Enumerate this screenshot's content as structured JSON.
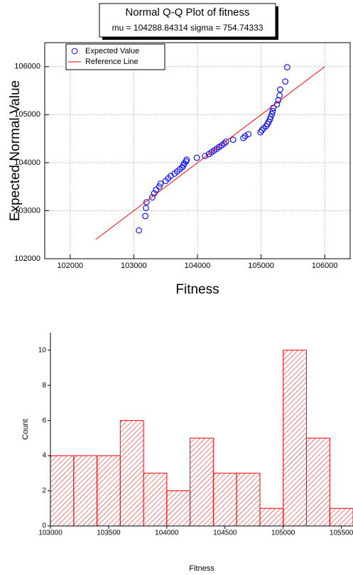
{
  "chart_data": [
    {
      "type": "scatter",
      "title": "Normal Q-Q Plot of fitness",
      "subtitle": "mu = 104288.84314  sigma = 754.74333",
      "xlabel": "Fitness",
      "ylabel": "Expected Normal Value",
      "xlim": [
        101600,
        106400
      ],
      "xticks": [
        102000,
        103000,
        104000,
        105000,
        106000
      ],
      "ylim": [
        102000,
        106500
      ],
      "yticks": [
        102000,
        103000,
        104000,
        105000,
        106000
      ],
      "grid": true,
      "legend": "upper left",
      "series": [
        {
          "name": "Expected Value",
          "type": "scatter",
          "color": "#0000ff",
          "x": [
            103080,
            103180,
            103190,
            103200,
            103290,
            103320,
            103350,
            103400,
            103420,
            103500,
            103540,
            103580,
            103640,
            103680,
            103720,
            103760,
            103780,
            103790,
            103820,
            103830,
            103990,
            104120,
            104180,
            104220,
            104260,
            104300,
            104340,
            104380,
            104420,
            104450,
            104560,
            104720,
            104750,
            104800,
            104990,
            105010,
            105040,
            105080,
            105100,
            105120,
            105140,
            105150,
            105170,
            105180,
            105190,
            105250,
            105270,
            105290,
            105300,
            105380,
            105410
          ],
          "values": [
            102590,
            102888,
            103055,
            103178,
            103277,
            103363,
            103436,
            103503,
            103563,
            103620,
            103673,
            103724,
            103771,
            103817,
            103861,
            103904,
            103945,
            103985,
            104026,
            104064,
            104103,
            104140,
            104178,
            104215,
            104252,
            104289,
            104326,
            104363,
            104401,
            104438,
            104478,
            104514,
            104553,
            104593,
            104632,
            104674,
            104717,
            104761,
            104807,
            104854,
            104905,
            104958,
            105015,
            105075,
            105142,
            105215,
            105301,
            105400,
            105523,
            105690,
            105988
          ]
        },
        {
          "name": "Reference Line",
          "type": "line",
          "color": "#ff0000",
          "x": [
            102400,
            106000
          ],
          "values": [
            102400,
            106000
          ]
        }
      ]
    },
    {
      "type": "histogram",
      "xlabel": "Fitness",
      "ylabel": "Count",
      "color": "#ff0000",
      "hatch": true,
      "bins": [
        103000,
        103200,
        103400,
        103600,
        103800,
        104000,
        104200,
        104400,
        104600,
        104800,
        105000,
        105200,
        105400,
        105600
      ],
      "values": [
        4,
        4,
        4,
        6,
        3,
        2,
        5,
        3,
        3,
        1,
        10,
        5,
        1
      ],
      "xlim": [
        103000,
        105600
      ],
      "xticks": [
        103000,
        103500,
        104000,
        104500,
        105000,
        105500
      ],
      "ylim": [
        0,
        11
      ],
      "yticks": [
        0,
        2,
        4,
        6,
        8,
        10
      ]
    }
  ]
}
